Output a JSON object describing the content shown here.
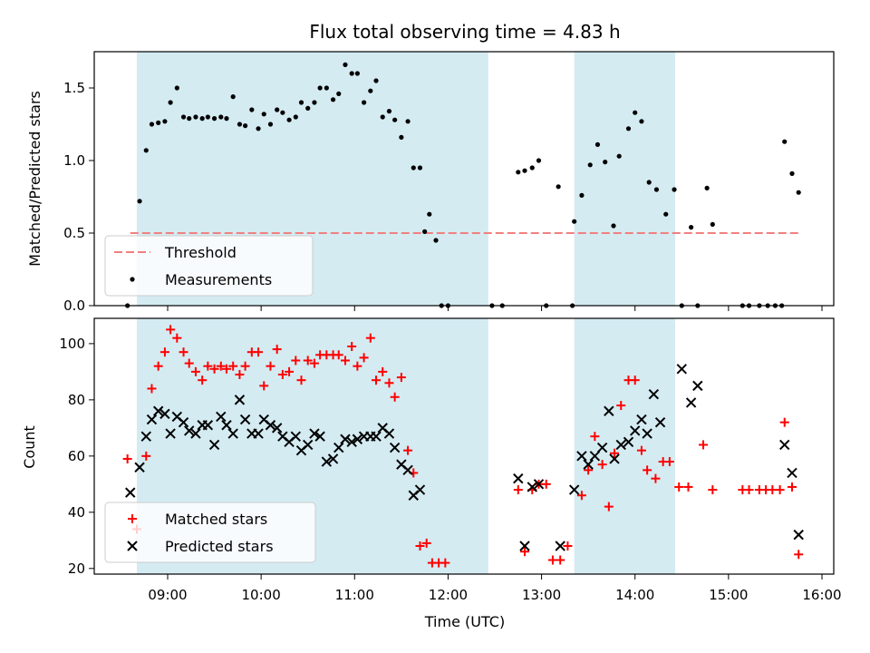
{
  "chart_data": [
    {
      "type": "scatter",
      "title": "Flux total observing time = 4.83 h",
      "xlabel": "",
      "ylabel": "Matched/Predicted stars",
      "ylim": [
        0,
        1.75
      ],
      "yticks": [
        "0.0",
        "0.5",
        "1.0",
        "1.5"
      ],
      "xlim_hours": [
        8.3,
        16.1
      ],
      "shaded_intervals": [
        [
          8.67,
          12.43
        ],
        [
          13.35,
          14.43
        ]
      ],
      "shade_color": "#add8e6",
      "threshold": {
        "name": "Threshold",
        "value": 0.5,
        "x_range": [
          8.6,
          15.75
        ],
        "color": "#f08080"
      },
      "legend": {
        "placement": "lower-left",
        "entries": [
          "Threshold",
          "Measurements"
        ]
      },
      "series": [
        {
          "name": "Measurements",
          "marker": "dot",
          "color": "#000000",
          "points": [
            [
              8.57,
              0.0
            ],
            [
              8.7,
              0.72
            ],
            [
              8.77,
              1.07
            ],
            [
              8.83,
              1.25
            ],
            [
              8.9,
              1.26
            ],
            [
              8.97,
              1.27
            ],
            [
              9.03,
              1.4
            ],
            [
              9.1,
              1.5
            ],
            [
              9.17,
              1.3
            ],
            [
              9.23,
              1.29
            ],
            [
              9.3,
              1.3
            ],
            [
              9.37,
              1.29
            ],
            [
              9.43,
              1.3
            ],
            [
              9.5,
              1.29
            ],
            [
              9.57,
              1.3
            ],
            [
              9.63,
              1.29
            ],
            [
              9.7,
              1.44
            ],
            [
              9.77,
              1.25
            ],
            [
              9.83,
              1.24
            ],
            [
              9.9,
              1.35
            ],
            [
              9.97,
              1.22
            ],
            [
              10.03,
              1.32
            ],
            [
              10.1,
              1.25
            ],
            [
              10.17,
              1.35
            ],
            [
              10.23,
              1.33
            ],
            [
              10.3,
              1.28
            ],
            [
              10.37,
              1.3
            ],
            [
              10.43,
              1.4
            ],
            [
              10.5,
              1.36
            ],
            [
              10.57,
              1.4
            ],
            [
              10.63,
              1.5
            ],
            [
              10.7,
              1.5
            ],
            [
              10.77,
              1.42
            ],
            [
              10.83,
              1.46
            ],
            [
              10.9,
              1.66
            ],
            [
              10.97,
              1.6
            ],
            [
              11.03,
              1.6
            ],
            [
              11.1,
              1.4
            ],
            [
              11.17,
              1.48
            ],
            [
              11.23,
              1.55
            ],
            [
              11.3,
              1.3
            ],
            [
              11.37,
              1.34
            ],
            [
              11.43,
              1.28
            ],
            [
              11.5,
              1.16
            ],
            [
              11.57,
              1.27
            ],
            [
              11.63,
              0.95
            ],
            [
              11.7,
              0.95
            ],
            [
              11.75,
              0.51
            ],
            [
              11.8,
              0.63
            ],
            [
              11.87,
              0.45
            ],
            [
              11.93,
              0.0
            ],
            [
              12.0,
              0.0
            ],
            [
              12.47,
              0.0
            ],
            [
              12.58,
              0.0
            ],
            [
              12.75,
              0.92
            ],
            [
              12.82,
              0.93
            ],
            [
              12.9,
              0.95
            ],
            [
              12.97,
              1.0
            ],
            [
              13.05,
              0.0
            ],
            [
              13.18,
              0.82
            ],
            [
              13.33,
              0.0
            ],
            [
              13.35,
              0.58
            ],
            [
              13.43,
              0.76
            ],
            [
              13.52,
              0.97
            ],
            [
              13.6,
              1.11
            ],
            [
              13.68,
              0.99
            ],
            [
              13.77,
              0.55
            ],
            [
              13.83,
              1.03
            ],
            [
              13.93,
              1.22
            ],
            [
              14.0,
              1.33
            ],
            [
              14.07,
              1.27
            ],
            [
              14.15,
              0.85
            ],
            [
              14.23,
              0.8
            ],
            [
              14.33,
              0.63
            ],
            [
              14.42,
              0.8
            ],
            [
              14.5,
              0.0
            ],
            [
              14.6,
              0.54
            ],
            [
              14.67,
              0.0
            ],
            [
              14.77,
              0.81
            ],
            [
              14.83,
              0.56
            ],
            [
              15.15,
              0.0
            ],
            [
              15.22,
              0.0
            ],
            [
              15.33,
              0.0
            ],
            [
              15.42,
              0.0
            ],
            [
              15.5,
              0.0
            ],
            [
              15.57,
              0.0
            ],
            [
              15.6,
              1.13
            ],
            [
              15.68,
              0.91
            ],
            [
              15.75,
              0.78
            ]
          ]
        }
      ]
    },
    {
      "type": "scatter",
      "title": "",
      "xlabel": "Time (UTC)",
      "ylabel": "Count",
      "ylim": [
        18,
        109
      ],
      "yticks": [
        "20",
        "40",
        "60",
        "80",
        "100"
      ],
      "xlim_hours": [
        8.3,
        16.1
      ],
      "xticks": [
        "09:00",
        "10:00",
        "11:00",
        "12:00",
        "13:00",
        "14:00",
        "15:00",
        "16:00"
      ],
      "shaded_intervals": [
        [
          8.67,
          12.43
        ],
        [
          13.35,
          14.43
        ]
      ],
      "shade_color": "#add8e6",
      "legend": {
        "placement": "lower-left",
        "entries": [
          "Matched stars",
          "Predicted stars"
        ]
      },
      "series": [
        {
          "name": "Matched stars",
          "marker": "plus",
          "color": "#ff0000",
          "points": [
            [
              8.57,
              59
            ],
            [
              8.67,
              34
            ],
            [
              8.77,
              60
            ],
            [
              8.83,
              84
            ],
            [
              8.9,
              92
            ],
            [
              8.97,
              97
            ],
            [
              9.03,
              105
            ],
            [
              9.1,
              102
            ],
            [
              9.17,
              97
            ],
            [
              9.23,
              93
            ],
            [
              9.3,
              90
            ],
            [
              9.37,
              87
            ],
            [
              9.43,
              92
            ],
            [
              9.5,
              91
            ],
            [
              9.57,
              92
            ],
            [
              9.63,
              91
            ],
            [
              9.7,
              92
            ],
            [
              9.77,
              89
            ],
            [
              9.83,
              92
            ],
            [
              9.9,
              97
            ],
            [
              9.97,
              97
            ],
            [
              10.03,
              85
            ],
            [
              10.1,
              92
            ],
            [
              10.17,
              98
            ],
            [
              10.23,
              89
            ],
            [
              10.3,
              90
            ],
            [
              10.37,
              94
            ],
            [
              10.43,
              87
            ],
            [
              10.5,
              94
            ],
            [
              10.57,
              93
            ],
            [
              10.63,
              96
            ],
            [
              10.7,
              96
            ],
            [
              10.77,
              96
            ],
            [
              10.83,
              96
            ],
            [
              10.9,
              94
            ],
            [
              10.97,
              99
            ],
            [
              11.03,
              92
            ],
            [
              11.1,
              95
            ],
            [
              11.17,
              102
            ],
            [
              11.23,
              87
            ],
            [
              11.3,
              90
            ],
            [
              11.37,
              86
            ],
            [
              11.43,
              81
            ],
            [
              11.5,
              88
            ],
            [
              11.57,
              62
            ],
            [
              11.63,
              54
            ],
            [
              11.7,
              28
            ],
            [
              11.77,
              29
            ],
            [
              11.83,
              22
            ],
            [
              11.9,
              22
            ],
            [
              11.97,
              22
            ],
            [
              12.75,
              48
            ],
            [
              12.82,
              26
            ],
            [
              12.9,
              48
            ],
            [
              12.97,
              50
            ],
            [
              13.05,
              50
            ],
            [
              13.12,
              23
            ],
            [
              13.2,
              23
            ],
            [
              13.28,
              28
            ],
            [
              13.43,
              46
            ],
            [
              13.5,
              55
            ],
            [
              13.57,
              67
            ],
            [
              13.65,
              57
            ],
            [
              13.72,
              42
            ],
            [
              13.78,
              61
            ],
            [
              13.85,
              78
            ],
            [
              13.93,
              87
            ],
            [
              14.0,
              87
            ],
            [
              14.07,
              62
            ],
            [
              14.13,
              55
            ],
            [
              14.22,
              52
            ],
            [
              14.3,
              58
            ],
            [
              14.37,
              58
            ],
            [
              14.47,
              49
            ],
            [
              14.57,
              49
            ],
            [
              14.73,
              64
            ],
            [
              14.83,
              48
            ],
            [
              15.15,
              48
            ],
            [
              15.22,
              48
            ],
            [
              15.33,
              48
            ],
            [
              15.4,
              48
            ],
            [
              15.47,
              48
            ],
            [
              15.55,
              48
            ],
            [
              15.6,
              72
            ],
            [
              15.68,
              49
            ],
            [
              15.75,
              25
            ]
          ]
        },
        {
          "name": "Predicted stars",
          "marker": "x",
          "color": "#000000",
          "points": [
            [
              8.6,
              47
            ],
            [
              8.7,
              56
            ],
            [
              8.77,
              67
            ],
            [
              8.83,
              73
            ],
            [
              8.9,
              76
            ],
            [
              8.97,
              75
            ],
            [
              9.03,
              68
            ],
            [
              9.1,
              74
            ],
            [
              9.17,
              72
            ],
            [
              9.23,
              69
            ],
            [
              9.3,
              68
            ],
            [
              9.37,
              71
            ],
            [
              9.43,
              71
            ],
            [
              9.5,
              64
            ],
            [
              9.57,
              74
            ],
            [
              9.63,
              71
            ],
            [
              9.7,
              68
            ],
            [
              9.77,
              80
            ],
            [
              9.83,
              73
            ],
            [
              9.9,
              68
            ],
            [
              9.97,
              68
            ],
            [
              10.03,
              73
            ],
            [
              10.1,
              71
            ],
            [
              10.17,
              70
            ],
            [
              10.23,
              67
            ],
            [
              10.3,
              65
            ],
            [
              10.37,
              67
            ],
            [
              10.43,
              62
            ],
            [
              10.5,
              64
            ],
            [
              10.57,
              68
            ],
            [
              10.63,
              67
            ],
            [
              10.7,
              58
            ],
            [
              10.77,
              59
            ],
            [
              10.83,
              63
            ],
            [
              10.9,
              66
            ],
            [
              10.97,
              65
            ],
            [
              11.03,
              66
            ],
            [
              11.1,
              67
            ],
            [
              11.17,
              67
            ],
            [
              11.23,
              67
            ],
            [
              11.3,
              70
            ],
            [
              11.37,
              68
            ],
            [
              11.43,
              63
            ],
            [
              11.5,
              57
            ],
            [
              11.57,
              55
            ],
            [
              11.63,
              46
            ],
            [
              11.7,
              48
            ],
            [
              12.75,
              52
            ],
            [
              12.82,
              28
            ],
            [
              12.9,
              49
            ],
            [
              12.97,
              50
            ],
            [
              13.2,
              28
            ],
            [
              13.35,
              48
            ],
            [
              13.43,
              60
            ],
            [
              13.5,
              57
            ],
            [
              13.57,
              60
            ],
            [
              13.65,
              63
            ],
            [
              13.72,
              76
            ],
            [
              13.78,
              59
            ],
            [
              13.85,
              64
            ],
            [
              13.93,
              65
            ],
            [
              14.0,
              69
            ],
            [
              14.07,
              73
            ],
            [
              14.13,
              68
            ],
            [
              14.2,
              82
            ],
            [
              14.27,
              72
            ],
            [
              14.5,
              91
            ],
            [
              14.6,
              79
            ],
            [
              14.67,
              85
            ],
            [
              15.6,
              64
            ],
            [
              15.68,
              54
            ],
            [
              15.75,
              32
            ]
          ]
        }
      ]
    }
  ]
}
